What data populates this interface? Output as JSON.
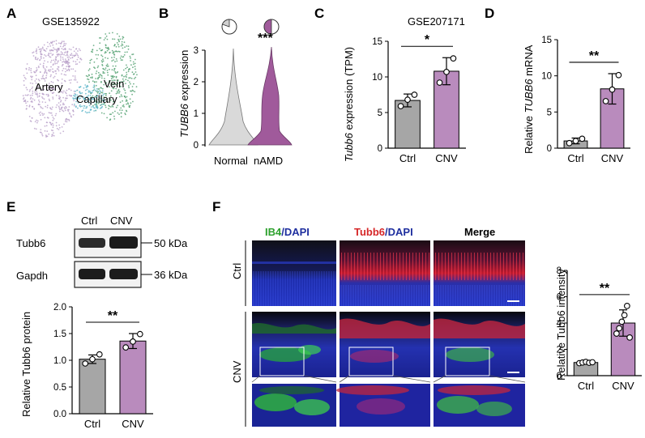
{
  "panel_letters": [
    "A",
    "B",
    "C",
    "D",
    "E",
    "F"
  ],
  "panelA": {
    "dataset": "GSE135922",
    "clusters": [
      {
        "label": "Artery",
        "color": "#b9a0c9"
      },
      {
        "label": "Vein",
        "color": "#4f9f6e"
      },
      {
        "label": "Capillary",
        "color": "#5fb6c9"
      }
    ]
  },
  "panelB": {
    "ylabel_italic": "TUBB6",
    "ylabel_rest": " expression",
    "significance": "***",
    "colors": {
      "Normal": "#d9d9d9",
      "nAMD": "#a05a9b"
    }
  },
  "panelC": {
    "dataset": "GSE207171",
    "ylabel_italic": "Tubb6",
    "ylabel_rest": " expression (TPM)",
    "significance": "*"
  },
  "panelD": {
    "ylabel_pre": "Relative ",
    "ylabel_italic": "TUBB6",
    "ylabel_rest": " mRNA",
    "significance": "**"
  },
  "panelE": {
    "lanes": [
      "Ctrl",
      "CNV"
    ],
    "blots": [
      {
        "protein": "Tubb6",
        "size": "50 kDa"
      },
      {
        "protein": "Gapdh",
        "size": "36 kDa"
      }
    ],
    "ylabel": "Relative Tubb6 protein",
    "significance": "**"
  },
  "panelF": {
    "channels": [
      {
        "parts": [
          {
            "text": "IB4",
            "color": "#2ca02c"
          },
          {
            "text": "/DAPI",
            "color": "#1f2f9f"
          }
        ]
      },
      {
        "parts": [
          {
            "text": "Tubb6",
            "color": "#d62728"
          },
          {
            "text": "/DAPI",
            "color": "#1f2f9f"
          }
        ]
      },
      {
        "parts": [
          {
            "text": "Merge",
            "color": "#000000"
          }
        ]
      }
    ],
    "rows": [
      "Ctrl",
      "CNV"
    ],
    "ylabel": "Relative Tubb6 intensity",
    "significance": "**"
  },
  "chart_data": [
    {
      "panel": "B",
      "type": "violin",
      "categories": [
        "Normal",
        "nAMD"
      ],
      "ylabel": "TUBB6 expression",
      "ylim": [
        0,
        3
      ],
      "yticks": [
        0,
        1,
        2,
        3
      ]
    },
    {
      "panel": "C",
      "type": "bar",
      "title": "GSE207171",
      "categories": [
        "Ctrl",
        "CNV"
      ],
      "values": [
        6.7,
        10.8
      ],
      "errors": [
        0.9,
        1.9
      ],
      "points": [
        [
          5.9,
          6.8,
          7.5
        ],
        [
          9.2,
          10.7,
          12.6
        ]
      ],
      "bar_colors": [
        "#a6a6a6",
        "#b98bbd"
      ],
      "ylabel": "Tubb6 expression (TPM)",
      "ylim": [
        0,
        15
      ],
      "yticks": [
        0,
        5,
        10,
        15
      ]
    },
    {
      "panel": "D",
      "type": "bar",
      "categories": [
        "Ctrl",
        "CNV"
      ],
      "values": [
        1.0,
        8.2
      ],
      "errors": [
        0.4,
        2.1
      ],
      "points": [
        [
          0.7,
          1.0,
          1.3
        ],
        [
          6.5,
          8.1,
          10.1
        ]
      ],
      "bar_colors": [
        "#a6a6a6",
        "#b98bbd"
      ],
      "ylabel": "Relative TUBB6 mRNA",
      "ylim": [
        0,
        15
      ],
      "yticks": [
        0,
        5,
        10,
        15
      ]
    },
    {
      "panel": "E",
      "type": "bar",
      "categories": [
        "Ctrl",
        "CNV"
      ],
      "values": [
        1.02,
        1.36
      ],
      "errors": [
        0.08,
        0.14
      ],
      "points": [
        [
          0.94,
          1.02,
          1.11
        ],
        [
          1.24,
          1.35,
          1.49
        ]
      ],
      "bar_colors": [
        "#a6a6a6",
        "#b98bbd"
      ],
      "ylabel": "Relative Tubb6 protein",
      "ylim": [
        0,
        2.0
      ],
      "yticks": [
        0.0,
        0.5,
        1.0,
        1.5,
        2.0
      ]
    },
    {
      "panel": "F",
      "type": "bar",
      "categories": [
        "Ctrl",
        "CNV"
      ],
      "values": [
        1.0,
        4.0
      ],
      "errors": [
        0.12,
        1.0
      ],
      "points": [
        [
          0.95,
          1.0,
          1.05,
          0.98,
          1.02
        ],
        [
          3.2,
          3.6,
          4.1,
          4.6,
          5.3,
          2.9
        ]
      ],
      "bar_colors": [
        "#a6a6a6",
        "#b98bbd"
      ],
      "ylabel": "Relative Tubb6 intensity",
      "ylim": [
        0,
        8
      ],
      "yticks": [
        0,
        2,
        4,
        6,
        8
      ]
    }
  ]
}
